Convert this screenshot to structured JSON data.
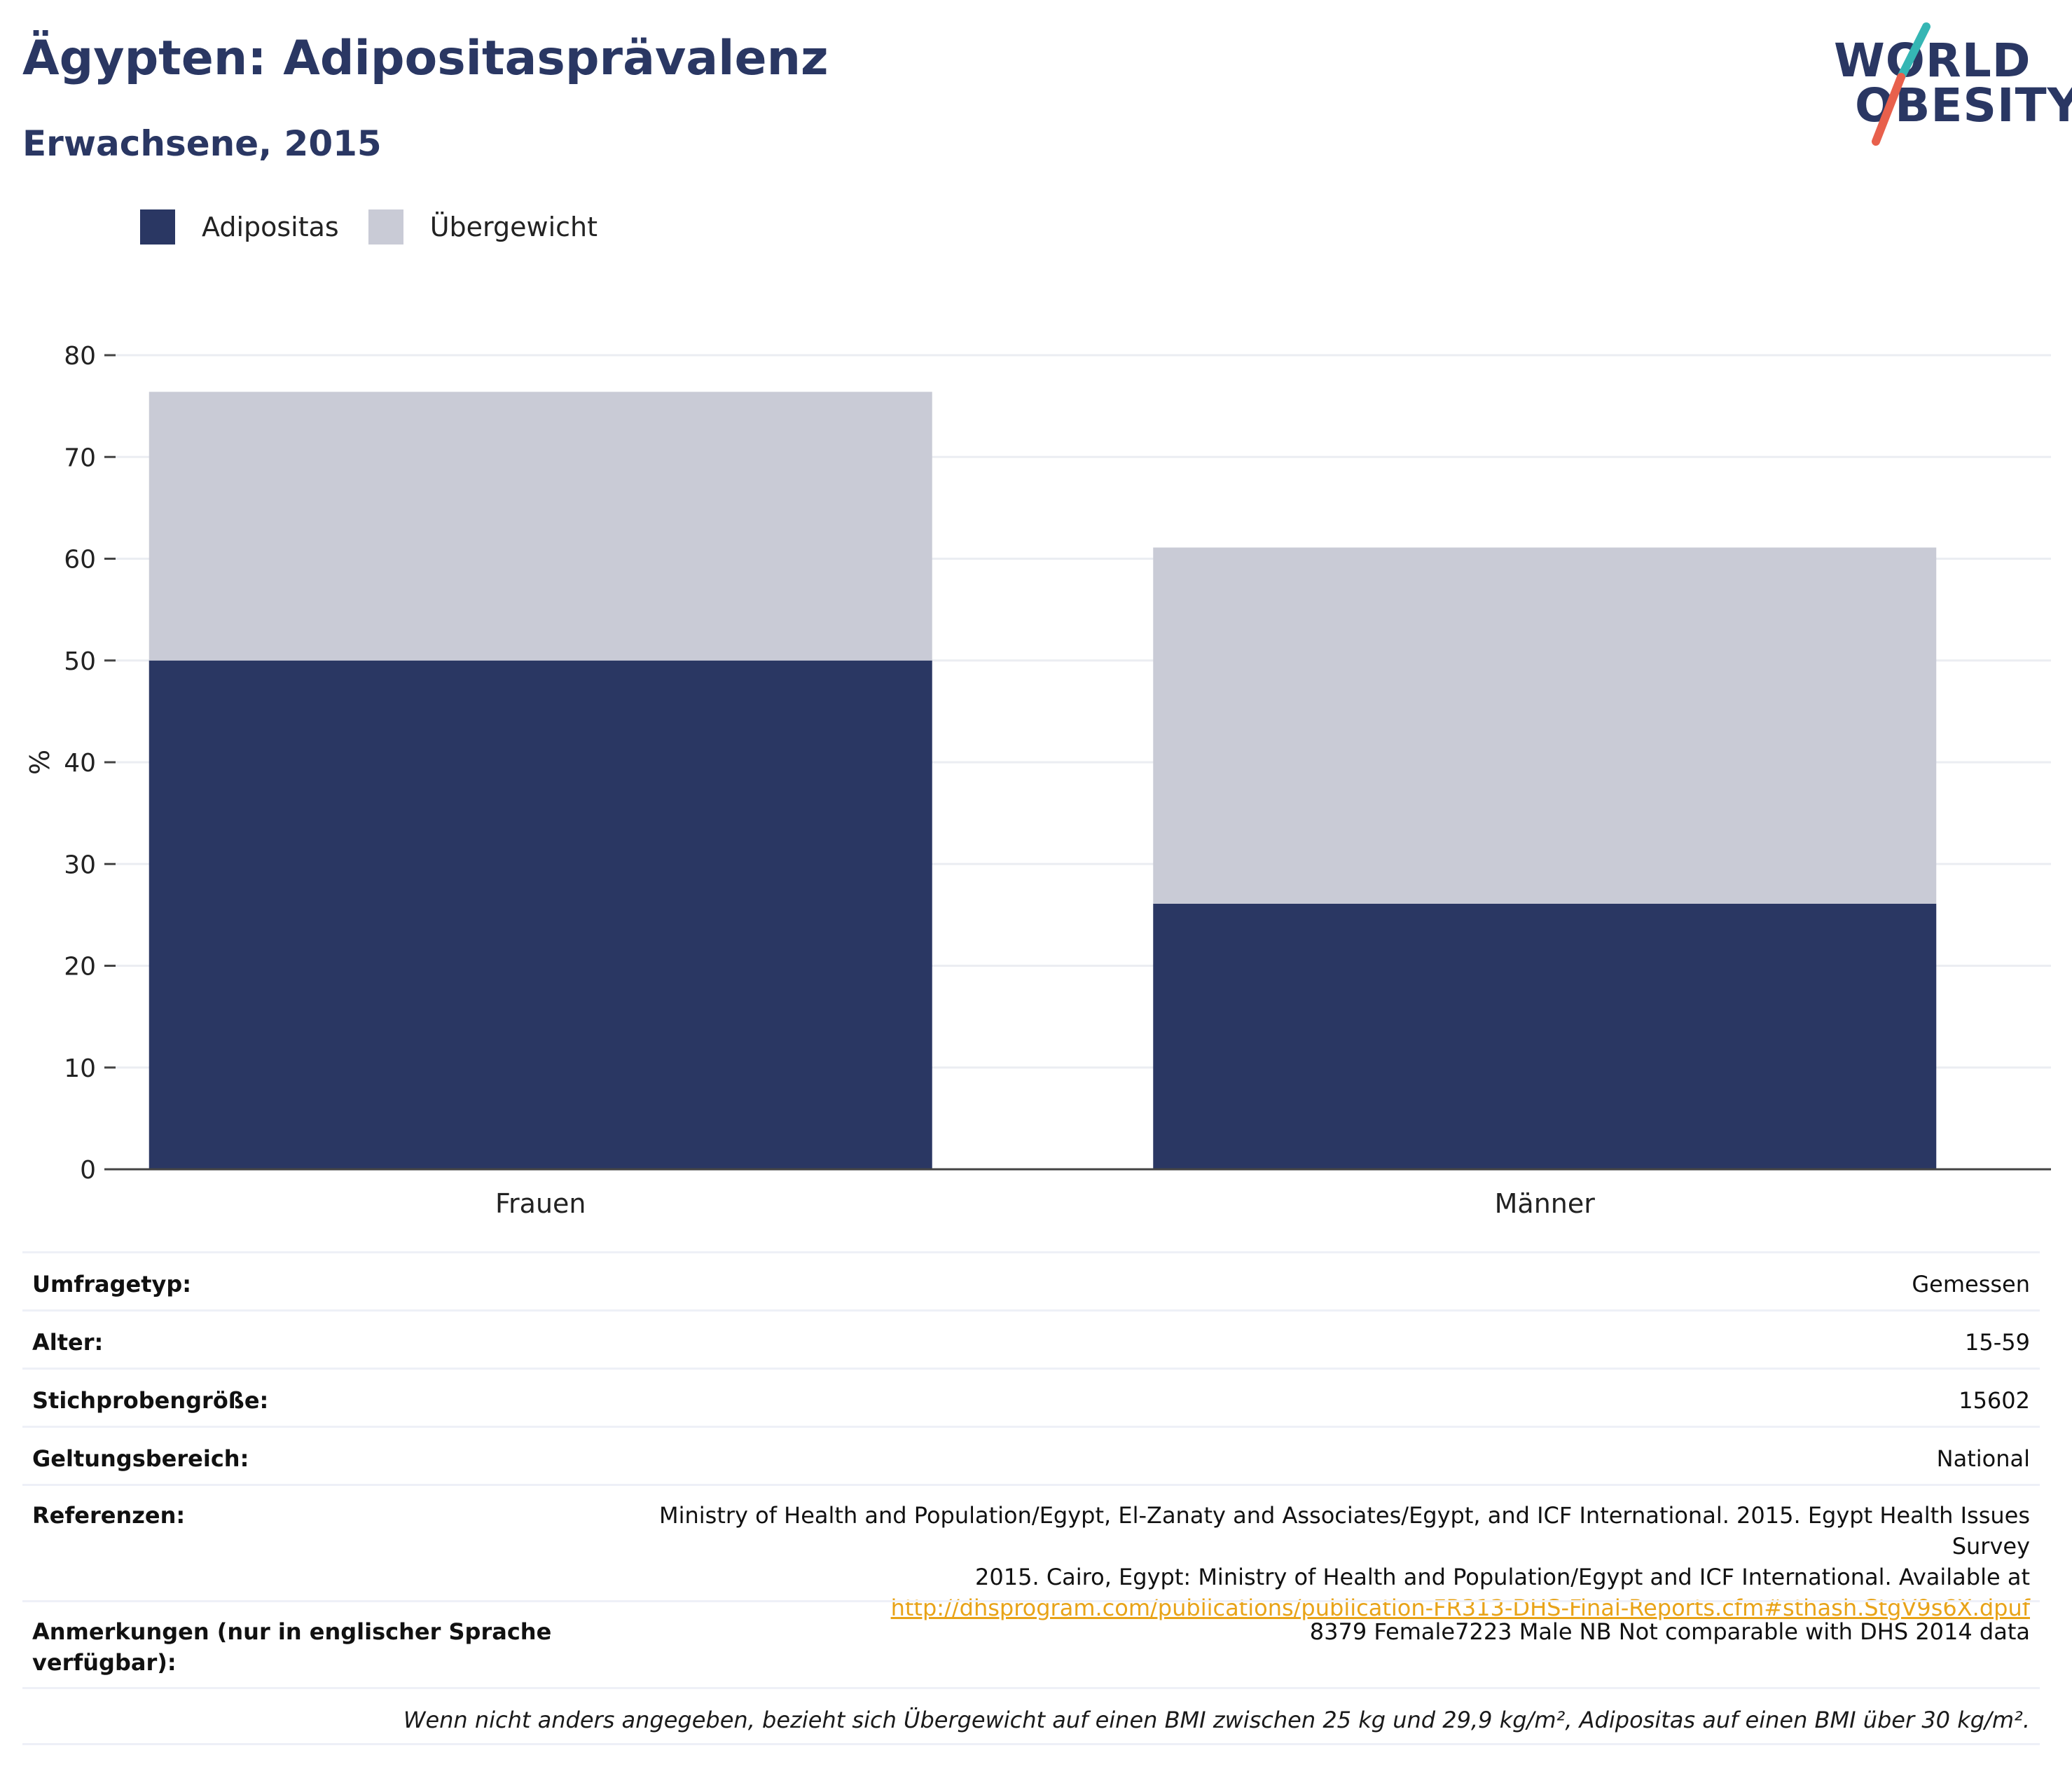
{
  "header": {
    "title": "Ägypten: Adipositasprävalenz",
    "subtitle": "Erwachsene, 2015"
  },
  "logo": {
    "line1": "WORLD",
    "line2": "OBESITY",
    "colors": {
      "text": "#2a3763",
      "slash_top": "#35b6b4",
      "slash_bottom": "#e8604c"
    }
  },
  "legend": [
    {
      "label": "Adipositas",
      "color": "#2a3763"
    },
    {
      "label": "Übergewicht",
      "color": "#c9cbd6"
    }
  ],
  "chart_data": {
    "type": "bar",
    "stacked": true,
    "categories": [
      "Frauen",
      "Männer"
    ],
    "series": [
      {
        "name": "Adipositas",
        "color": "#2a3763",
        "values": [
          50.0,
          26.1
        ]
      },
      {
        "name": "Übergewicht",
        "color": "#c9cbd6",
        "values": [
          26.4,
          35.0
        ]
      }
    ],
    "ylabel": "%",
    "xlabel": "",
    "ylim": [
      0,
      80
    ],
    "yticks": [
      0,
      10,
      20,
      30,
      40,
      50,
      60,
      70,
      80
    ],
    "grid": true,
    "legend_position": "top-left"
  },
  "info": {
    "survey_type": {
      "label": "Umfragetyp:",
      "value": "Gemessen"
    },
    "age": {
      "label": "Alter:",
      "value": "15-59"
    },
    "sample_size": {
      "label": "Stichprobengröße:",
      "value": "15602"
    },
    "scope": {
      "label": "Geltungsbereich:",
      "value": "National"
    },
    "references": {
      "label": "Referenzen:",
      "text_line1": "Ministry of Health and Population/Egypt, El-Zanaty and Associates/Egypt, and ICF International. 2015. Egypt Health Issues Survey",
      "text_line2": "2015. Cairo, Egypt: Ministry of Health and Population/Egypt and ICF International. Available at",
      "link": "http://dhsprogram.com/publications/publication-FR313-DHS-Final-Reports.cfm#sthash.StgV9s6X.dpuf"
    },
    "notes": {
      "label": "Anmerkungen (nur in englischer Sprache verfügbar):",
      "value": "8379 Female7223 Male NB Not comparable with DHS 2014 data"
    },
    "footnote": "Wenn nicht anders angegeben, bezieht sich Übergewicht auf einen BMI zwischen 25 kg und 29,9 kg/m², Adipositas auf einen BMI über 30 kg/m²."
  }
}
